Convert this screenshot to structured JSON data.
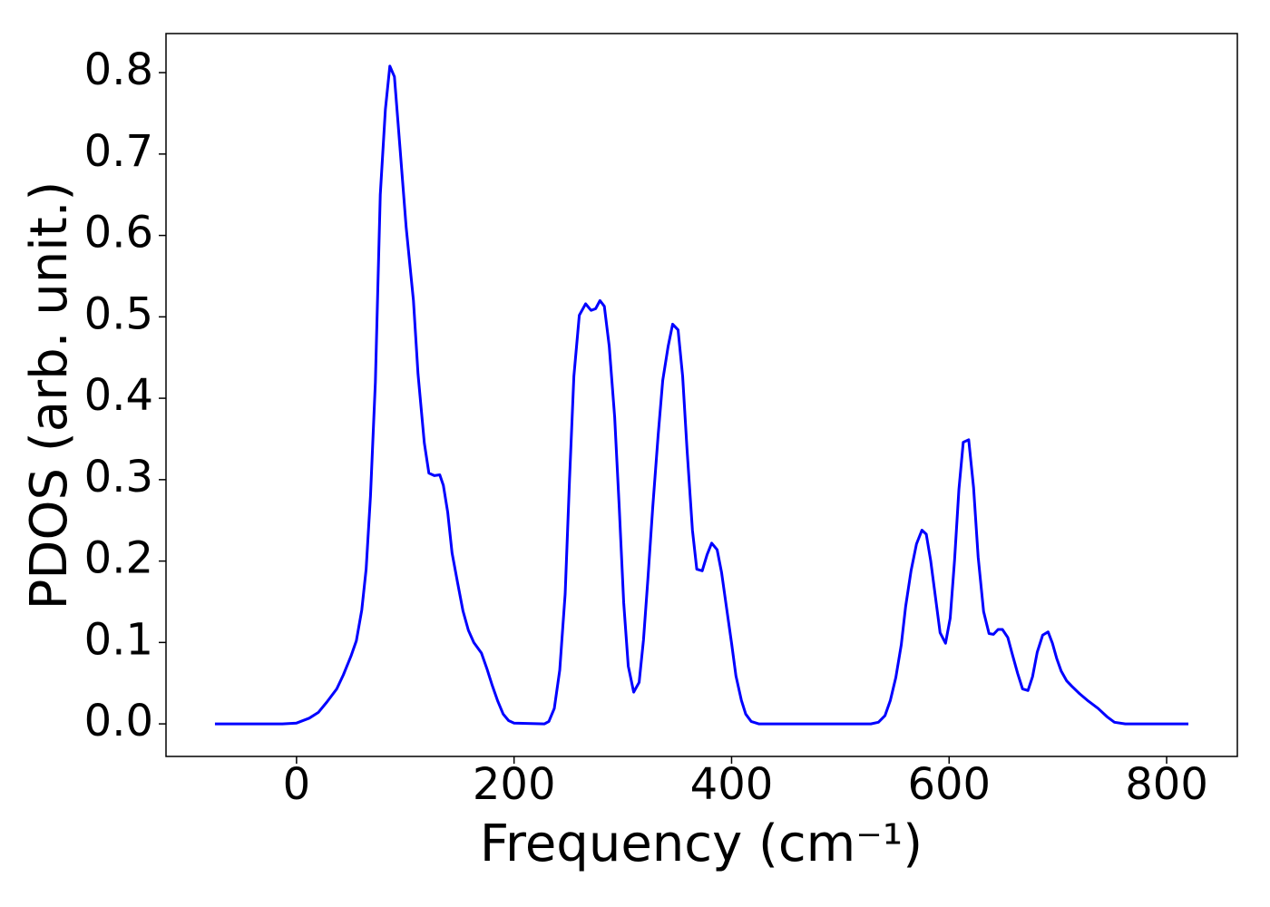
{
  "chart_data": {
    "type": "line",
    "xlabel": "Frequency (cm⁻¹)",
    "ylabel": "PDOS (arb. unit.)",
    "xlim": [
      -120,
      865
    ],
    "ylim": [
      -0.04,
      0.848
    ],
    "xticks": [
      0,
      200,
      400,
      600,
      800
    ],
    "yticks": [
      {
        "value": 0,
        "label": "0.0"
      },
      0.1,
      0.2,
      0.3,
      0.4,
      0.5,
      0.6,
      0.7,
      0.8
    ],
    "grid": false,
    "series": [
      {
        "color": "#0000ff",
        "x": [
          -75,
          -13,
          0,
          11.7,
          20,
          28,
          37,
          43,
          50,
          55,
          60,
          64,
          68,
          72.5,
          77,
          81.7,
          85.8,
          90,
          95,
          100.8,
          107.5,
          111.7,
          117.5,
          121.7,
          126.7,
          131.7,
          135,
          139,
          143,
          148,
          153,
          158,
          163,
          170,
          175,
          180,
          185,
          190,
          195,
          200,
          228,
          232,
          237,
          242,
          247,
          251,
          255,
          260,
          265.8,
          270.8,
          275,
          279,
          283,
          287.5,
          292.5,
          296.7,
          300.8,
          305,
          310,
          315,
          319,
          323,
          327.5,
          332.5,
          336.7,
          341.7,
          345.8,
          350.8,
          355,
          359,
          364,
          368,
          373,
          377.5,
          381.7,
          386.7,
          390.8,
          395,
          400,
          404,
          409,
          413,
          418,
          425,
          528,
          535,
          541,
          546,
          551,
          556,
          560,
          565,
          570,
          575,
          579,
          583,
          587.5,
          591.7,
          596.7,
          601,
          605,
          609,
          613,
          618,
          622.5,
          626.7,
          631.7,
          636.7,
          640.8,
          645,
          649,
          654,
          658,
          663,
          667.5,
          672.5,
          676.7,
          681,
          686,
          691,
          695,
          699,
          703,
          708,
          713,
          720,
          728,
          737,
          745,
          752,
          762,
          820
        ],
        "values": [
          0,
          0,
          0.001,
          0.007,
          0.014,
          0.027,
          0.043,
          0.06,
          0.083,
          0.102,
          0.14,
          0.19,
          0.28,
          0.42,
          0.65,
          0.755,
          0.808,
          0.795,
          0.71,
          0.61,
          0.52,
          0.43,
          0.345,
          0.308,
          0.305,
          0.306,
          0.293,
          0.26,
          0.21,
          0.174,
          0.139,
          0.115,
          0.1,
          0.087,
          0.068,
          0.047,
          0.028,
          0.012,
          0.004,
          0.001,
          0,
          0.003,
          0.019,
          0.066,
          0.16,
          0.3,
          0.427,
          0.502,
          0.516,
          0.508,
          0.51,
          0.52,
          0.513,
          0.464,
          0.377,
          0.266,
          0.149,
          0.071,
          0.039,
          0.051,
          0.103,
          0.177,
          0.266,
          0.355,
          0.422,
          0.464,
          0.491,
          0.484,
          0.427,
          0.338,
          0.238,
          0.19,
          0.188,
          0.208,
          0.222,
          0.214,
          0.186,
          0.146,
          0.099,
          0.059,
          0.029,
          0.012,
          0.003,
          0,
          0,
          0.002,
          0.01,
          0.029,
          0.057,
          0.097,
          0.144,
          0.188,
          0.221,
          0.238,
          0.233,
          0.201,
          0.155,
          0.112,
          0.099,
          0.13,
          0.201,
          0.288,
          0.346,
          0.349,
          0.29,
          0.205,
          0.138,
          0.111,
          0.11,
          0.116,
          0.116,
          0.106,
          0.086,
          0.062,
          0.043,
          0.041,
          0.058,
          0.088,
          0.109,
          0.113,
          0.099,
          0.08,
          0.065,
          0.053,
          0.046,
          0.037,
          0.028,
          0.019,
          0.009,
          0.002,
          0,
          0
        ]
      }
    ]
  }
}
